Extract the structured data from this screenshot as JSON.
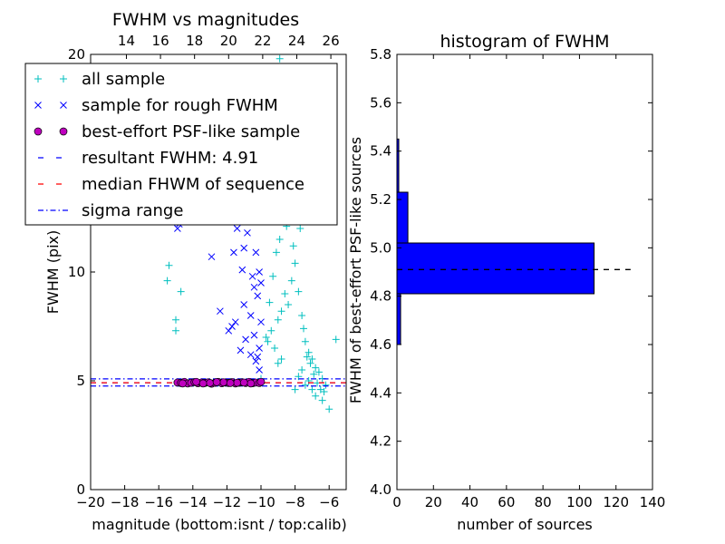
{
  "chart_data": [
    {
      "type": "scatter",
      "title": "FWHM vs magnitudes",
      "xlabel": "magnitude (bottom:isnt / top:calib)",
      "ylabel": "FWHM (pix)",
      "xlim": [
        -20,
        -5
      ],
      "ylim": [
        0,
        20
      ],
      "x_ticks": [
        "−20",
        "−18",
        "−16",
        "−14",
        "−12",
        "−10",
        "−8",
        "−6"
      ],
      "x_tick_values": [
        -20,
        -18,
        -16,
        -14,
        -12,
        -10,
        -8,
        -6
      ],
      "y_ticks": [
        "0",
        "5",
        "10",
        "15",
        "20"
      ],
      "y_tick_values": [
        0,
        5,
        10,
        15,
        20
      ],
      "top_ticks": [
        "14",
        "16",
        "18",
        "20",
        "22",
        "24",
        "26"
      ],
      "top_tick_values": [
        14,
        16,
        18,
        20,
        22,
        24,
        26
      ],
      "top_offset": 31.9,
      "legend_position": "upper-left",
      "legend": [
        {
          "label": "all sample",
          "marker": "+",
          "color": "#00bfbf"
        },
        {
          "label": "sample for rough FWHM",
          "marker": "x",
          "color": "#0000ff"
        },
        {
          "label": "best-effort PSF-like sample",
          "marker": "o",
          "color": "#bf00bf"
        },
        {
          "label": "resultant FWHM: 4.91",
          "marker": "dashed",
          "color": "#0000ff"
        },
        {
          "label": "median FHWM of sequence",
          "marker": "dashed",
          "color": "#ff0000"
        },
        {
          "label": "sigma range",
          "marker": "dashdot",
          "color": "#0000ff"
        }
      ],
      "series": [
        {
          "name": "all sample",
          "points": [
            [
              -10.0,
              5.1
            ],
            [
              -9.6,
              6.8
            ],
            [
              -9.4,
              7.3
            ],
            [
              -9.2,
              6.5
            ],
            [
              -9.0,
              7.8
            ],
            [
              -8.8,
              8.2
            ],
            [
              -8.6,
              9.0
            ],
            [
              -8.4,
              8.5
            ],
            [
              -8.2,
              9.6
            ],
            [
              -8.0,
              10.4
            ],
            [
              -7.8,
              9.1
            ],
            [
              -7.6,
              8.0
            ],
            [
              -7.4,
              6.8
            ],
            [
              -7.2,
              6.3
            ],
            [
              -7.0,
              6.0
            ],
            [
              -6.8,
              5.6
            ],
            [
              -6.6,
              5.4
            ],
            [
              -6.4,
              5.1
            ],
            [
              -8.9,
              11.5
            ],
            [
              -8.5,
              12.1
            ],
            [
              -8.1,
              11.2
            ],
            [
              -7.9,
              12.4
            ],
            [
              -8.7,
              13.0
            ],
            [
              -9.1,
              10.9
            ],
            [
              -8.3,
              14.6
            ],
            [
              -8.0,
              13.7
            ],
            [
              -7.7,
              12.0
            ],
            [
              -9.3,
              9.8
            ],
            [
              -7.5,
              7.4
            ],
            [
              -7.3,
              6.1
            ],
            [
              -7.1,
              5.8
            ],
            [
              -6.9,
              5.3
            ],
            [
              -6.7,
              4.9
            ],
            [
              -6.5,
              4.6
            ],
            [
              -6.3,
              4.5
            ],
            [
              -6.2,
              4.8
            ],
            [
              -5.6,
              6.9
            ],
            [
              -8.4,
              16.5
            ],
            [
              -8.2,
              17.3
            ],
            [
              -8.6,
              15.2
            ],
            [
              -9.5,
              8.6
            ],
            [
              -9.7,
              7.0
            ],
            [
              -7.8,
              5.2
            ],
            [
              -7.6,
              5.5
            ],
            [
              -8.8,
              6.0
            ],
            [
              -9.0,
              5.8
            ],
            [
              -8.0,
              4.6
            ],
            [
              -7.4,
              4.8
            ],
            [
              -15.4,
              10.3
            ],
            [
              -15.5,
              9.6
            ],
            [
              -15.0,
              7.8
            ],
            [
              -15.0,
              7.3
            ],
            [
              -14.7,
              9.1
            ],
            [
              -13.8,
              15.6
            ],
            [
              -12.8,
              16.8
            ],
            [
              -11.2,
              12.9
            ],
            [
              -10.9,
              14.7
            ],
            [
              -12.0,
              13.3
            ],
            [
              -13.2,
              19.4
            ],
            [
              -8.9,
              19.8
            ],
            [
              -8.6,
              19.4
            ],
            [
              -10.8,
              17.3
            ],
            [
              -9.9,
              14.2
            ],
            [
              -9.5,
              18.5
            ],
            [
              -9.2,
              13.5
            ],
            [
              -6.0,
              3.7
            ],
            [
              -6.4,
              4.1
            ],
            [
              -6.8,
              4.3
            ],
            [
              -7.0,
              4.6
            ],
            [
              -7.2,
              5.0
            ]
          ]
        },
        {
          "name": "sample for rough FWHM",
          "points": [
            [
              -14.8,
              12.2
            ],
            [
              -14.9,
              12.0
            ],
            [
              -12.9,
              10.7
            ],
            [
              -12.4,
              8.2
            ],
            [
              -11.7,
              7.5
            ],
            [
              -11.5,
              7.7
            ],
            [
              -11.2,
              6.4
            ],
            [
              -10.9,
              6.9
            ],
            [
              -10.6,
              6.2
            ],
            [
              -10.3,
              5.9
            ],
            [
              -10.1,
              6.5
            ],
            [
              -10.0,
              7.7
            ],
            [
              -11.0,
              11.1
            ],
            [
              -11.6,
              10.9
            ],
            [
              -11.1,
              10.1
            ],
            [
              -10.4,
              9.3
            ],
            [
              -10.2,
              8.9
            ],
            [
              -11.4,
              12.0
            ],
            [
              -10.8,
              11.8
            ],
            [
              -10.5,
              12.5
            ],
            [
              -10.3,
              10.9
            ],
            [
              -10.1,
              10.0
            ],
            [
              -11.8,
              12.8
            ],
            [
              -11.3,
              13.3
            ],
            [
              -10.7,
              13.9
            ],
            [
              -10.2,
              12.6
            ],
            [
              -10.0,
              9.5
            ],
            [
              -11.0,
              8.5
            ],
            [
              -10.6,
              8.0
            ],
            [
              -10.4,
              7.1
            ],
            [
              -10.2,
              6.1
            ],
            [
              -10.1,
              5.5
            ],
            [
              -11.9,
              7.3
            ],
            [
              -11.6,
              14.5
            ],
            [
              -10.9,
              13.0
            ],
            [
              -10.5,
              9.8
            ]
          ]
        },
        {
          "name": "best-effort PSF-like sample",
          "points": [
            [
              -14.9,
              4.92
            ],
            [
              -14.7,
              4.9
            ],
            [
              -14.5,
              4.95
            ],
            [
              -14.3,
              4.88
            ],
            [
              -14.1,
              4.91
            ],
            [
              -13.9,
              4.94
            ],
            [
              -13.7,
              4.89
            ],
            [
              -13.5,
              4.92
            ],
            [
              -13.3,
              4.9
            ],
            [
              -13.1,
              4.93
            ],
            [
              -12.9,
              4.87
            ],
            [
              -12.7,
              4.91
            ],
            [
              -12.5,
              4.95
            ],
            [
              -12.3,
              4.89
            ],
            [
              -12.1,
              4.92
            ],
            [
              -11.9,
              4.9
            ],
            [
              -11.7,
              4.94
            ],
            [
              -11.5,
              4.88
            ],
            [
              -11.3,
              4.91
            ],
            [
              -11.1,
              4.93
            ],
            [
              -10.9,
              4.9
            ],
            [
              -10.7,
              4.95
            ],
            [
              -10.5,
              4.89
            ],
            [
              -10.3,
              4.92
            ],
            [
              -10.1,
              4.9
            ],
            [
              -14.6,
              4.88
            ],
            [
              -13.8,
              4.95
            ],
            [
              -13.0,
              4.9
            ],
            [
              -12.2,
              4.93
            ],
            [
              -11.4,
              4.91
            ],
            [
              -10.6,
              4.88
            ],
            [
              -10.0,
              4.95
            ],
            [
              -13.4,
              4.88
            ],
            [
              -12.6,
              4.94
            ],
            [
              -11.8,
              4.9
            ],
            [
              -11.0,
              4.92
            ]
          ]
        }
      ],
      "lines": [
        {
          "name": "resultant FWHM: 4.91",
          "y": 4.91,
          "style": "dashed",
          "color": "#0000ff"
        },
        {
          "name": "median FHWM of sequence",
          "y": 4.91,
          "style": "dashed",
          "color": "#ff0000"
        },
        {
          "name": "sigma range",
          "y": 5.09,
          "style": "dashdot",
          "color": "#0000ff"
        },
        {
          "name": "sigma range",
          "y": 4.76,
          "style": "dashdot",
          "color": "#0000ff"
        }
      ]
    },
    {
      "type": "bar",
      "orientation": "horizontal",
      "title": "histogram of FWHM",
      "xlabel": "number of sources",
      "ylabel": "FWHM of best-effort PSF-like sources",
      "xlim": [
        0,
        140
      ],
      "ylim": [
        4.0,
        5.8
      ],
      "x_ticks": [
        "0",
        "20",
        "40",
        "60",
        "80",
        "100",
        "120",
        "140"
      ],
      "x_tick_values": [
        0,
        20,
        40,
        60,
        80,
        100,
        120,
        140
      ],
      "y_ticks": [
        "4.0",
        "4.2",
        "4.4",
        "4.6",
        "4.8",
        "5.0",
        "5.2",
        "5.4",
        "5.6",
        "5.8"
      ],
      "y_tick_values": [
        4.0,
        4.2,
        4.4,
        4.6,
        4.8,
        5.0,
        5.2,
        5.4,
        5.6,
        5.8
      ],
      "bar_color": "#0000ff",
      "bins": [
        {
          "from": 4.6,
          "to": 4.81,
          "count": 2
        },
        {
          "from": 4.81,
          "to": 5.02,
          "count": 108
        },
        {
          "from": 5.02,
          "to": 5.23,
          "count": 6
        },
        {
          "from": 5.23,
          "to": 5.45,
          "count": 1
        }
      ],
      "reference_line": {
        "y": 4.91,
        "style": "dashed",
        "color": "#000000",
        "x_to": 128
      }
    }
  ]
}
